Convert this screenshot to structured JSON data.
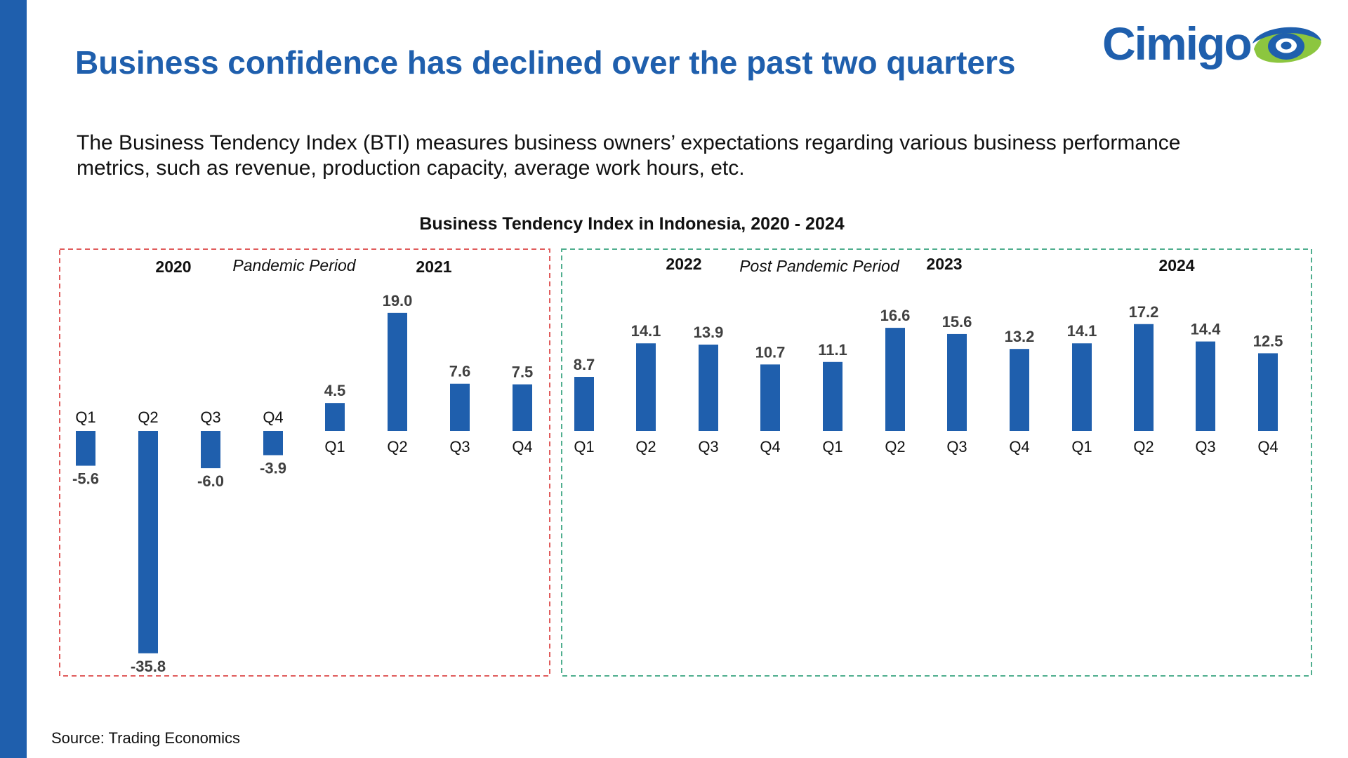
{
  "page": {
    "title": "Business confidence has declined over the past two quarters",
    "description": "The Business Tendency Index (BTI) measures business owners’ expectations regarding various business performance metrics, such as revenue, production capacity, average work hours, etc.",
    "source": "Source: Trading Economics",
    "logo_text": "Cimigo"
  },
  "colors": {
    "accent": "#1f5fad",
    "bar": "#1f5fad",
    "pandemic_border": "#e05c5c",
    "post_pandemic_border": "#4fae8e",
    "logo_green": "#8cc63f"
  },
  "chart_data": {
    "type": "bar",
    "title": "Business Tendency Index in Indonesia, 2020 - 2024",
    "xlabel": "",
    "ylabel": "",
    "categories": [
      "Q1",
      "Q2",
      "Q3",
      "Q4",
      "Q1",
      "Q2",
      "Q3",
      "Q4",
      "Q1",
      "Q2",
      "Q3",
      "Q4",
      "Q1",
      "Q2",
      "Q3",
      "Q4",
      "Q1",
      "Q2",
      "Q3",
      "Q4"
    ],
    "years": [
      "2020",
      "2020",
      "2020",
      "2020",
      "2021",
      "2021",
      "2021",
      "2021",
      "2022",
      "2022",
      "2022",
      "2022",
      "2023",
      "2023",
      "2023",
      "2023",
      "2024",
      "2024",
      "2024",
      "2024"
    ],
    "values": [
      -5.6,
      -35.8,
      -6.0,
      -3.9,
      4.5,
      19.0,
      7.6,
      7.5,
      8.7,
      14.1,
      13.9,
      10.7,
      11.1,
      16.6,
      15.6,
      13.2,
      14.1,
      17.2,
      14.4,
      12.5
    ],
    "value_labels": [
      "-5.6",
      "-35.8",
      "-6.0",
      "-3.9",
      "4.5",
      "19.0",
      "7.6",
      "7.5",
      "8.7",
      "14.1",
      "13.9",
      "10.7",
      "11.1",
      "16.6",
      "15.6",
      "13.2",
      "14.1",
      "17.2",
      "14.4",
      "12.5"
    ],
    "periods": [
      {
        "name": "Pandemic Period",
        "years": [
          "2020",
          "2021"
        ]
      },
      {
        "name": "Post Pandemic Period",
        "years": [
          "2022",
          "2023",
          "2024"
        ]
      }
    ],
    "grid": false,
    "legend": "none"
  }
}
